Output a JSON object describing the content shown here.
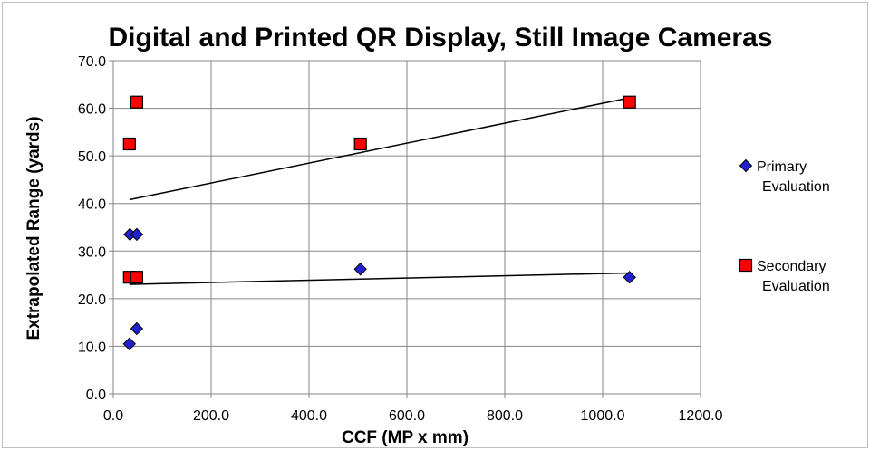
{
  "chart_data": {
    "type": "scatter",
    "title": "Digital and Printed QR Display, Still Image Cameras",
    "xlabel": "CCF (MP x mm)",
    "ylabel": "Extrapolated Range (yards)",
    "xlim": [
      0,
      1200
    ],
    "ylim": [
      0,
      70
    ],
    "x_ticks": [
      "0.0",
      "200.0",
      "400.0",
      "600.0",
      "800.0",
      "1000.0",
      "1200.0"
    ],
    "y_ticks": [
      "0.0",
      "10.0",
      "20.0",
      "30.0",
      "40.0",
      "50.0",
      "60.0",
      "70.0"
    ],
    "grid": true,
    "legend_position": "right",
    "series": [
      {
        "name": "Primary Evaluation",
        "legend_lines": [
          "Primary",
          "Evaluation"
        ],
        "marker": "diamond",
        "color": "#2020d0",
        "points": [
          {
            "x": 33,
            "y": 10.5
          },
          {
            "x": 34,
            "y": 33.5
          },
          {
            "x": 48,
            "y": 33.5
          },
          {
            "x": 48,
            "y": 13.7
          },
          {
            "x": 505,
            "y": 26.2
          },
          {
            "x": 1055,
            "y": 24.5
          }
        ],
        "trendline": {
          "x": [
            33,
            1055
          ],
          "y": [
            23.0,
            25.4
          ]
        }
      },
      {
        "name": "Secondary Evaluation",
        "legend_lines": [
          "Secondary",
          "Evaluation"
        ],
        "marker": "square",
        "color": "#ff0000",
        "points": [
          {
            "x": 33,
            "y": 52.5
          },
          {
            "x": 48,
            "y": 61.3
          },
          {
            "x": 33,
            "y": 24.5
          },
          {
            "x": 48,
            "y": 24.5
          },
          {
            "x": 505,
            "y": 52.5
          },
          {
            "x": 1055,
            "y": 61.3
          }
        ],
        "trendline": {
          "x": [
            33,
            1055
          ],
          "y": [
            40.8,
            62.2
          ]
        }
      }
    ]
  }
}
